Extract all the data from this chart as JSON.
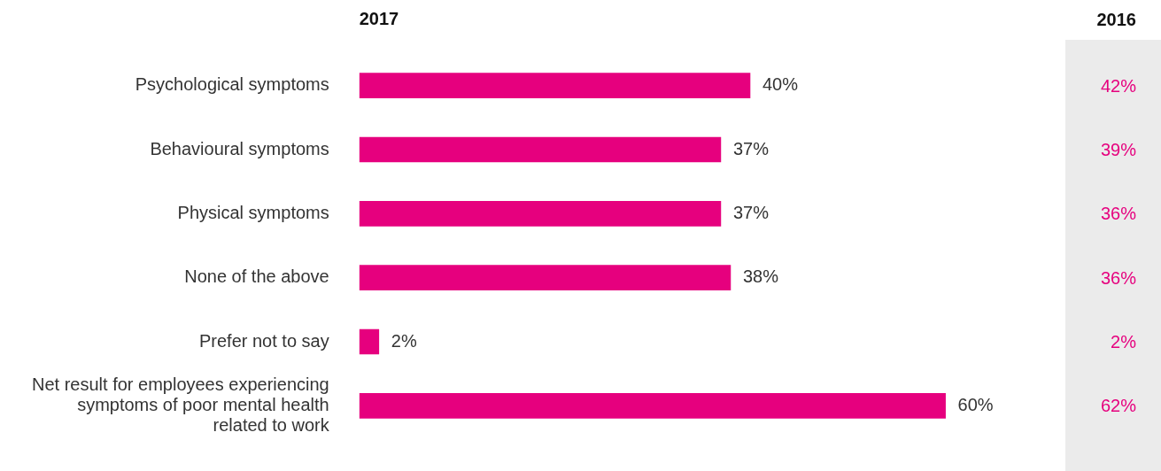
{
  "chart_data": {
    "type": "bar",
    "orientation": "horizontal",
    "categories": [
      "Psychological symptoms",
      "Behavioural symptoms",
      "Physical symptoms",
      "None of the above",
      "Prefer not to say",
      "Net result for employees experiencing symptoms of poor mental health related to work"
    ],
    "series": [
      {
        "name": "2017",
        "color": "#e6007e",
        "values": [
          40,
          37,
          37,
          38,
          2,
          60
        ],
        "value_labels": [
          "40%",
          "37%",
          "37%",
          "38%",
          "2%",
          "60%"
        ]
      }
    ],
    "annotations": [
      "2016",
      "42%",
      "39%",
      "36%",
      "36%",
      "2%",
      "62%"
    ],
    "legend": false
  }
}
